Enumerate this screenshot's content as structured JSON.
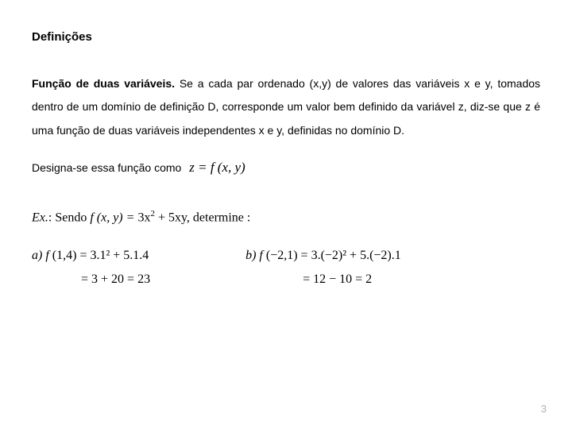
{
  "title": "Definições",
  "paragraph": {
    "lead": "Função de duas variáveis.",
    "rest": " Se a cada par ordenado (x,y) de valores das variáveis x e y, tomados dentro de um domínio de definição D, corresponde um valor bem definido da variável z, diz-se que z é uma função de duas variáveis independentes x e y, definidas no domínio D."
  },
  "designates": {
    "text": "Designa-se essa função como",
    "formula_lhs": "z = ",
    "formula_rhs": "f (x, y)"
  },
  "example": {
    "prefix": "Ex.",
    "mid": ": Sendo ",
    "fn": "f (x, y) = ",
    "expr_a": "3x",
    "expr_b": " + 5xy",
    "suffix": ", determine :"
  },
  "worked": {
    "a": {
      "label": "a) f ",
      "args": "(1,4) = ",
      "line1_rest": "3.1² + 5.1.4",
      "line2": "= 3 + 20 = 23"
    },
    "b": {
      "label": "b) f ",
      "args": "(−2,1) = ",
      "line1_rest": "3.(−2)² + 5.(−2).1",
      "line2": "= 12 − 10 = 2"
    }
  },
  "page_number": "3"
}
